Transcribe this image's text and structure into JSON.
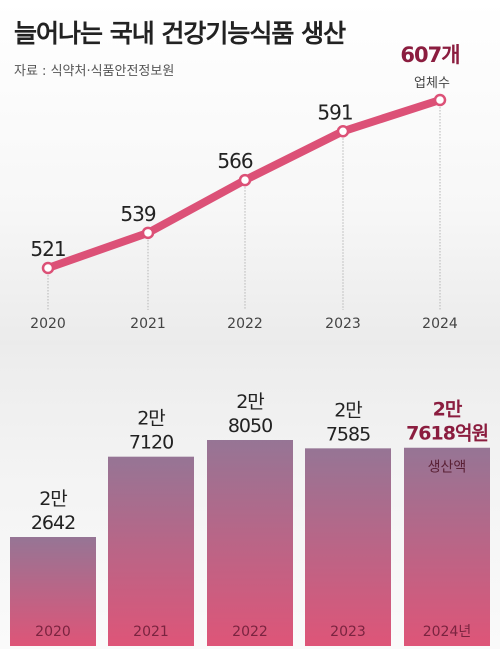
{
  "title": "늘어나는 국내 건강기능식품 생산",
  "source": "자료 : 식약처·식품안전정보원",
  "colors": {
    "line": "#dc5177",
    "bar_top": "#967595",
    "bar_bottom": "#de5578",
    "highlight_text": "#8b1d3f"
  },
  "chart_data": [
    {
      "type": "line",
      "x": [
        "2020",
        "2021",
        "2022",
        "2023",
        "2024"
      ],
      "values": [
        521,
        539,
        566,
        591,
        607
      ],
      "point_labels": [
        "521",
        "539",
        "566",
        "591",
        "607개"
      ],
      "unit_label": "업체수",
      "grid": false
    },
    {
      "type": "bar",
      "categories": [
        "2020",
        "2021",
        "2022",
        "2023",
        "2024년"
      ],
      "values": [
        22642,
        27120,
        28050,
        27585,
        27618
      ],
      "value_labels": [
        [
          "2만",
          "2642"
        ],
        [
          "2만",
          "7120"
        ],
        [
          "2만",
          "8050"
        ],
        [
          "2만",
          "7585"
        ],
        [
          "2만",
          "7618억원"
        ]
      ],
      "unit_label": "생산액",
      "grid": false
    }
  ]
}
